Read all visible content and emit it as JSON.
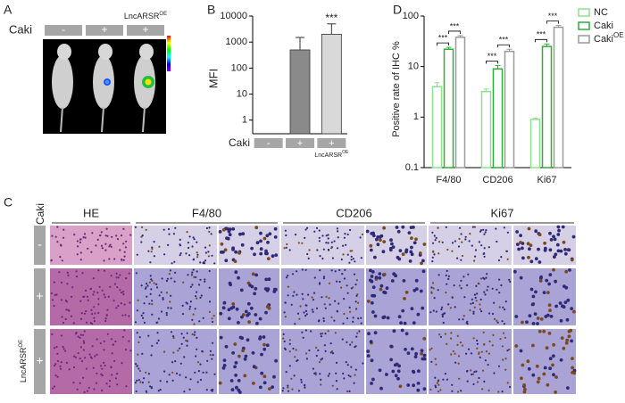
{
  "panel_labels": [
    "A",
    "B",
    "C",
    "D"
  ],
  "panel_a": {
    "row_label": "Caki",
    "conditions": [
      "-",
      "+",
      "+"
    ],
    "note": "LncARSR",
    "note_sup": "OE"
  },
  "panel_c": {
    "row_header": "Caki",
    "columns": [
      "HE",
      "F4/80",
      "CD206",
      "Ki67"
    ],
    "rows": [
      "-",
      "+",
      "+"
    ],
    "row_note": "LncARSR",
    "row_note_sup": "OE"
  },
  "chart_data": [
    {
      "type": "bar",
      "ylabel": "MFI",
      "x_label": "Caki",
      "categories": [
        "-",
        "+",
        "+"
      ],
      "category_note": "LncARSR",
      "category_note_sup": "OE",
      "values": [
        null,
        500,
        2000
      ],
      "errors": [
        null,
        1000,
        3000
      ],
      "annotations": [
        null,
        null,
        "***"
      ],
      "colors": [
        "#8a8a8a",
        "#8a8a8a",
        "#d9d9d9"
      ],
      "ylim": [
        0.3,
        10000
      ],
      "yticks": [
        1,
        10,
        100,
        1000,
        10000
      ],
      "log_scale": true
    },
    {
      "type": "grouped_bar",
      "ylabel": "Positive rate of  IHC %",
      "categories": [
        "F4/80",
        "CD206",
        "Ki67"
      ],
      "series": [
        {
          "name": "NC",
          "color": "#8fe08f",
          "values": [
            4,
            3.2,
            0.9
          ],
          "errors": [
            0.8,
            0.4,
            0.05
          ]
        },
        {
          "name": "Caki",
          "color": "#2fae3a",
          "values": [
            22,
            9,
            25
          ],
          "errors": [
            2,
            1.5,
            3
          ]
        },
        {
          "name": "Caki",
          "name_sup": "OE",
          "color": "#9a9a9a",
          "values": [
            38,
            20,
            60
          ],
          "errors": [
            3,
            2,
            5
          ]
        }
      ],
      "significance_labels": [
        [
          "***",
          "***"
        ],
        [
          "***",
          "***"
        ],
        [
          "***",
          "***"
        ]
      ],
      "ylim": [
        0.1,
        100
      ],
      "yticks": [
        0.1,
        1,
        10,
        100
      ],
      "log_scale": true,
      "legend": "upper right"
    }
  ]
}
